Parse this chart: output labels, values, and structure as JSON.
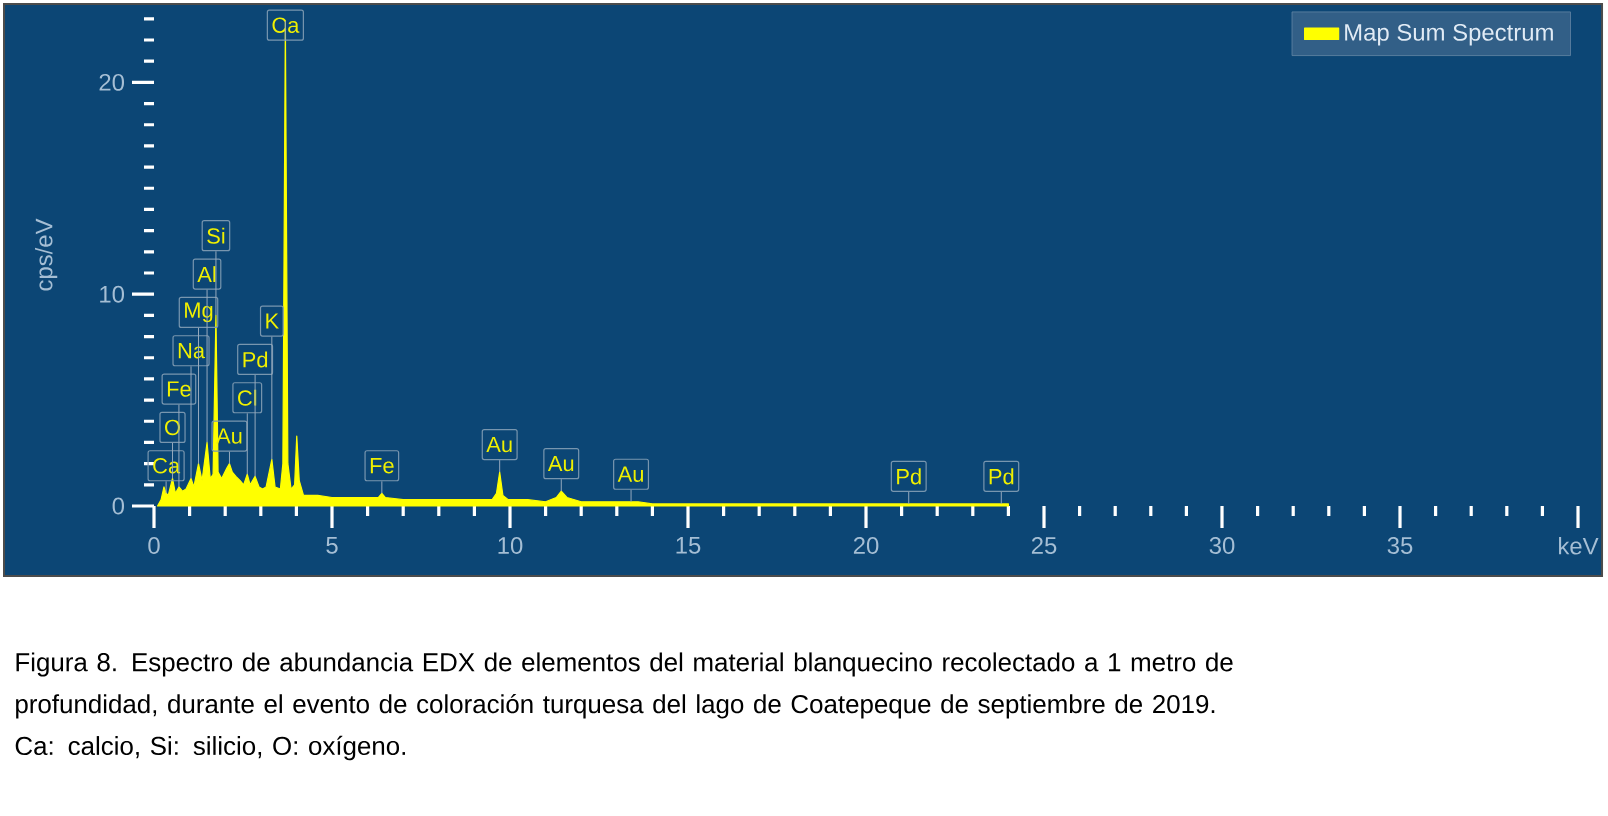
{
  "chart_data": {
    "type": "area",
    "ylabel": "cps/eV",
    "xlim": [
      0,
      40
    ],
    "ylim": [
      0,
      23.7
    ],
    "xticks": [
      0,
      {
        "value": 1,
        "label": null
      },
      {
        "value": 2,
        "label": null
      },
      {
        "value": 3,
        "label": null
      },
      {
        "value": 4,
        "label": null
      },
      5,
      {
        "value": 6,
        "label": null
      },
      {
        "value": 7,
        "label": null
      },
      {
        "value": 8,
        "label": null
      },
      {
        "value": 9,
        "label": null
      },
      10,
      {
        "value": 11,
        "label": null
      },
      {
        "value": 12,
        "label": null
      },
      {
        "value": 13,
        "label": null
      },
      {
        "value": 14,
        "label": null
      },
      15,
      {
        "value": 16,
        "label": null
      },
      {
        "value": 17,
        "label": null
      },
      {
        "value": 18,
        "label": null
      },
      {
        "value": 19,
        "label": null
      },
      20,
      {
        "value": 21,
        "label": null
      },
      {
        "value": 22,
        "label": null
      },
      {
        "value": 23,
        "label": null
      },
      {
        "value": 24,
        "label": null
      },
      25,
      {
        "value": 26,
        "label": null
      },
      {
        "value": 27,
        "label": null
      },
      {
        "value": 28,
        "label": null
      },
      {
        "value": 29,
        "label": null
      },
      30,
      {
        "value": 31,
        "label": null
      },
      {
        "value": 32,
        "label": null
      },
      {
        "value": 33,
        "label": null
      },
      {
        "value": 34,
        "label": null
      },
      35,
      {
        "value": 36,
        "label": null
      },
      {
        "value": 37,
        "label": null
      },
      {
        "value": 38,
        "label": null
      },
      {
        "value": 39,
        "label": null
      },
      {
        "value": 40,
        "label": "keV"
      }
    ],
    "yticks": [
      0,
      {
        "value": 1,
        "label": null
      },
      {
        "value": 2,
        "label": null
      },
      {
        "value": 3,
        "label": null
      },
      {
        "value": 4,
        "label": null
      },
      {
        "value": 5,
        "label": null
      },
      {
        "value": 6,
        "label": null
      },
      {
        "value": 7,
        "label": null
      },
      {
        "value": 8,
        "label": null
      },
      {
        "value": 9,
        "label": null
      },
      10,
      {
        "value": 11,
        "label": null
      },
      {
        "value": 12,
        "label": null
      },
      {
        "value": 13,
        "label": null
      },
      {
        "value": 14,
        "label": null
      },
      {
        "value": 15,
        "label": null
      },
      {
        "value": 16,
        "label": null
      },
      {
        "value": 17,
        "label": null
      },
      {
        "value": 18,
        "label": null
      },
      {
        "value": 19,
        "label": null
      },
      20,
      {
        "value": 21,
        "label": null
      },
      {
        "value": 22,
        "label": null
      },
      {
        "value": 23,
        "label": null
      }
    ],
    "legend": "top right",
    "x": [
      0.1,
      0.2,
      0.28,
      0.34,
      0.4,
      0.52,
      0.6,
      0.7,
      0.8,
      0.9,
      1.04,
      1.12,
      1.25,
      1.35,
      1.49,
      1.58,
      1.66,
      1.74,
      1.8,
      1.9,
      2.05,
      2.12,
      2.2,
      2.3,
      2.42,
      2.52,
      2.62,
      2.7,
      2.84,
      2.95,
      3.05,
      3.15,
      3.31,
      3.4,
      3.55,
      3.62,
      3.69,
      3.76,
      3.85,
      3.95,
      4.01,
      4.08,
      4.2,
      4.6,
      5.0,
      5.5,
      6.0,
      6.3,
      6.4,
      6.5,
      7.0,
      7.5,
      8.0,
      8.5,
      9.0,
      9.5,
      9.62,
      9.71,
      9.8,
      9.95,
      10.5,
      11.0,
      11.3,
      11.44,
      11.6,
      12.0,
      12.5,
      13.0,
      13.4,
      13.6,
      14,
      15,
      16,
      17,
      18,
      19,
      20,
      21,
      21.2,
      22,
      23,
      23.8,
      24
    ],
    "series": [
      {
        "name": "Map Sum Spectrum",
        "color": "#ffff00",
        "values": [
          0,
          0.3,
          0.9,
          0.6,
          0.5,
          1.3,
          0.6,
          0.9,
          0.7,
          0.8,
          1.3,
          0.9,
          2.0,
          1.2,
          3.0,
          1.3,
          1.5,
          9.0,
          1.6,
          1.3,
          1.8,
          2.0,
          1.6,
          1.4,
          1.2,
          1.0,
          1.5,
          1.0,
          1.4,
          0.9,
          0.8,
          0.9,
          2.2,
          0.9,
          0.8,
          2.0,
          22.9,
          2.0,
          0.8,
          1.0,
          3.3,
          1.2,
          0.5,
          0.5,
          0.4,
          0.4,
          0.4,
          0.4,
          0.6,
          0.4,
          0.3,
          0.3,
          0.3,
          0.3,
          0.3,
          0.3,
          0.6,
          1.6,
          0.5,
          0.3,
          0.3,
          0.2,
          0.4,
          0.7,
          0.4,
          0.2,
          0.2,
          0.2,
          0.2,
          0.2,
          0.1,
          0.1,
          0.1,
          0.1,
          0.1,
          0.1,
          0.1,
          0.1,
          0.1,
          0.1,
          0.1,
          0.1,
          0.1
        ]
      }
    ],
    "annotations": [
      {
        "text": "Ca",
        "x": 0.34,
        "y": 0.6
      },
      {
        "text": "O",
        "x": 0.52,
        "y": 1.3
      },
      {
        "text": "Fe",
        "x": 0.7,
        "y": 0.9
      },
      {
        "text": "Na",
        "x": 1.04,
        "y": 1.3
      },
      {
        "text": "Mg",
        "x": 1.25,
        "y": 2.0
      },
      {
        "text": "Al",
        "x": 1.49,
        "y": 3.0
      },
      {
        "text": "Si",
        "x": 1.74,
        "y": 9.0
      },
      {
        "text": "Au",
        "x": 2.12,
        "y": 2.0
      },
      {
        "text": "Cl",
        "x": 2.62,
        "y": 1.5
      },
      {
        "text": "Pd",
        "x": 2.84,
        "y": 1.4
      },
      {
        "text": "K",
        "x": 3.31,
        "y": 2.2
      },
      {
        "text": "Ca",
        "x": 3.69,
        "y": 22.9
      },
      {
        "text": "Fe",
        "x": 6.4,
        "y": 0.6
      },
      {
        "text": "Au",
        "x": 9.71,
        "y": 1.6
      },
      {
        "text": "Au",
        "x": 11.44,
        "y": 0.7
      },
      {
        "text": "Au",
        "x": 13.4,
        "y": 0.2
      },
      {
        "text": "Pd",
        "x": 21.2,
        "y": 0.1
      },
      {
        "text": "Pd",
        "x": 23.8,
        "y": 0.1
      },
      "Figura 8. Espectro de abundancia EDX de elementos del material blanquecino recolectado a 1 metro de profundidad, durante el evento de coloración turquesa del lago de Coatepeque de septiembre de 2019.",
      "Ca: calcio, Si: silicio, O: oxígeno."
    ]
  }
}
